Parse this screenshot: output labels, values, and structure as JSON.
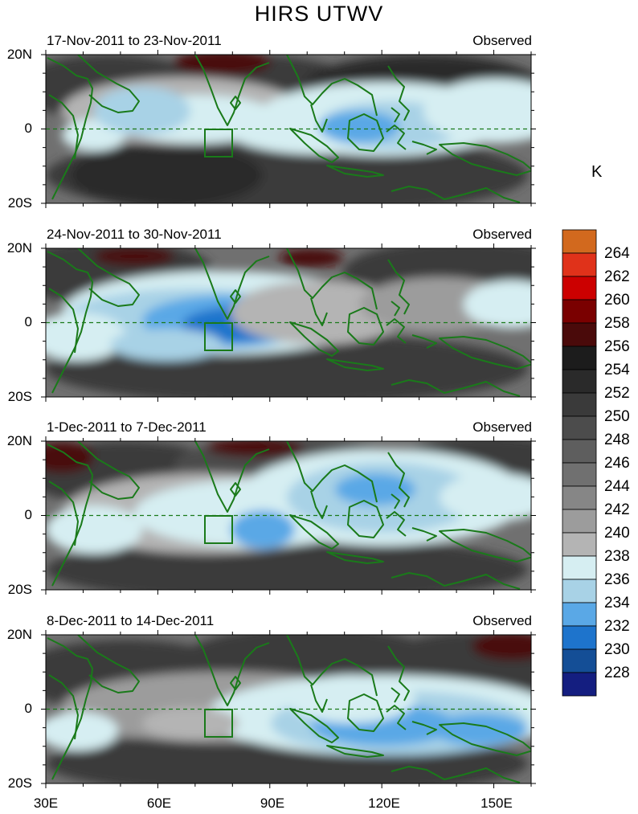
{
  "title": "HIRS UTWV",
  "unit": "K",
  "panels": [
    {
      "date_range": "17-Nov-2011 to 23-Nov-2011",
      "label": "Observed"
    },
    {
      "date_range": "24-Nov-2011 to 30-Nov-2011",
      "label": "Observed"
    },
    {
      "date_range": "1-Dec-2011 to 7-Dec-2011",
      "label": "Observed"
    },
    {
      "date_range": "8-Dec-2011 to 14-Dec-2011",
      "label": "Observed"
    }
  ],
  "lat_labels": [
    "20N",
    "0",
    "20S"
  ],
  "lon_labels": [
    "30E",
    "60E",
    "90E",
    "120E",
    "150E"
  ],
  "colorbar": {
    "labels": [
      "264",
      "262",
      "260",
      "258",
      "256",
      "254",
      "252",
      "250",
      "248",
      "246",
      "244",
      "242",
      "240",
      "238",
      "236",
      "234",
      "232",
      "230",
      "228"
    ],
    "colors": [
      "#d2691e",
      "#e0321a",
      "#cc0000",
      "#7a0000",
      "#4a0a0a",
      "#1c1c1c",
      "#2a2a2a",
      "#3a3a3a",
      "#4c4c4c",
      "#5e5e5e",
      "#707070",
      "#868686",
      "#9c9c9c",
      "#b4b4b4",
      "#d6eef2",
      "#a8d2e6",
      "#5aa8e6",
      "#1e74cc",
      "#144e96",
      "#141e80"
    ]
  },
  "colors": {
    "coastline": "#1a7a1a",
    "equator": "#1a7a1a",
    "box": "#1a7a1a"
  }
}
